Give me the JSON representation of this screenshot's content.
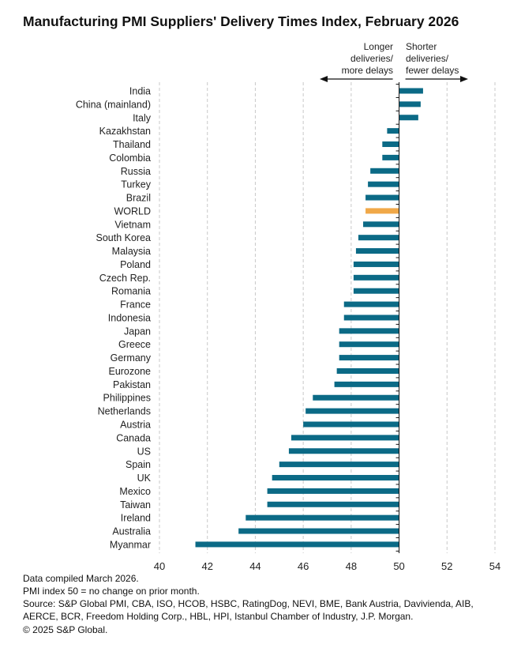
{
  "colors": {
    "bar": "#0b6a86",
    "world": "#f0a848",
    "grid": "#c8c8c8",
    "text": "#222222"
  },
  "chart_data": {
    "type": "bar",
    "orientation": "horizontal",
    "title": "Manufacturing PMI Suppliers' Delivery Times Index, February 2026",
    "xlabel": "",
    "ylabel": "",
    "xlim": [
      40,
      54
    ],
    "baseline": 50,
    "xticks": [
      40,
      42,
      44,
      46,
      48,
      50,
      52,
      54
    ],
    "grid": "vertical dashed",
    "annotations": {
      "left": [
        "Longer",
        "deliveries/",
        "more delays"
      ],
      "right": [
        "Shorter",
        "deliveries/",
        "fewer delays"
      ]
    },
    "categories": [
      "India",
      "China (mainland)",
      "Italy",
      "Kazakhstan",
      "Thailand",
      "Colombia",
      "Russia",
      "Turkey",
      "Brazil",
      "WORLD",
      "Vietnam",
      "South Korea",
      "Malaysia",
      "Poland",
      "Czech Rep.",
      "Romania",
      "France",
      "Indonesia",
      "Japan",
      "Greece",
      "Germany",
      "Eurozone",
      "Pakistan",
      "Philippines",
      "Netherlands",
      "Austria",
      "Canada",
      "US",
      "Spain",
      "UK",
      "Mexico",
      "Taiwan",
      "Ireland",
      "Australia",
      "Myanmar"
    ],
    "values": [
      51.0,
      50.9,
      50.8,
      49.5,
      49.3,
      49.3,
      48.8,
      48.7,
      48.6,
      48.6,
      48.5,
      48.3,
      48.2,
      48.1,
      48.1,
      48.1,
      47.7,
      47.7,
      47.5,
      47.5,
      47.5,
      47.4,
      47.3,
      46.4,
      46.1,
      46.0,
      45.5,
      45.4,
      45.0,
      44.7,
      44.5,
      44.5,
      43.6,
      43.3,
      41.5
    ],
    "highlight": "WORLD"
  },
  "footer": {
    "line1": "Data compiled March 2026.",
    "line2": "PMI index 50 = no change on prior month.",
    "line3": "Source: S&P Global PMI, CBA, ISO, HCOB, HSBC, RatingDog, NEVI, BME, Bank Austria, Davivienda, AIB,",
    "line4": "AERCE, BCR, Freedom Holding Corp., HBL, HPI, Istanbul Chamber of Industry, J.P. Morgan.",
    "line5": "© 2025 S&P Global."
  }
}
